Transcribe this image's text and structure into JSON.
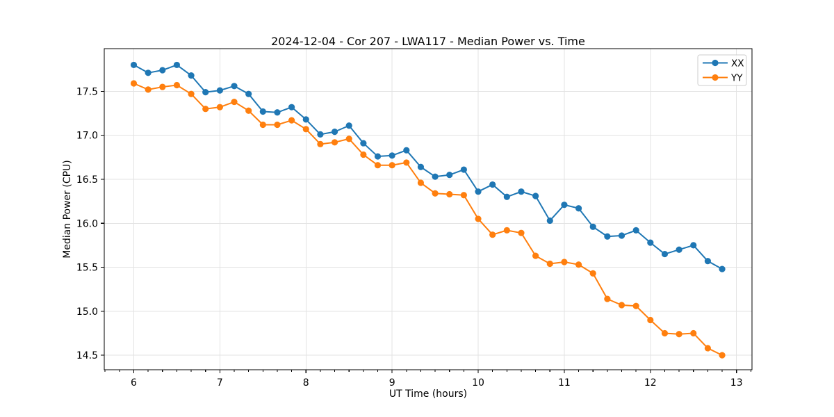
{
  "chart_data": {
    "type": "line",
    "title": "2024-12-04 - Cor 207 - LWA117 - Median Power vs. Time",
    "xlabel": "UT Time (hours)",
    "ylabel": "Median Power (CPU)",
    "xlim": [
      5.657,
      13.18
    ],
    "ylim": [
      14.335,
      17.985
    ],
    "xticks": [
      6,
      7,
      8,
      9,
      10,
      11,
      12,
      13
    ],
    "yticks": [
      14.5,
      15.0,
      15.5,
      16.0,
      16.5,
      17.0,
      17.5
    ],
    "x_minor_tick_step": 0.166667,
    "grid": true,
    "grid_color": "#e3e3e3",
    "legend_position": "upper right",
    "x": [
      6.0,
      6.1667,
      6.3333,
      6.5,
      6.6667,
      6.8333,
      7.0,
      7.1667,
      7.3333,
      7.5,
      7.6667,
      7.8333,
      8.0,
      8.1667,
      8.3333,
      8.5,
      8.6667,
      8.8333,
      9.0,
      9.1667,
      9.3333,
      9.5,
      9.6667,
      9.8333,
      10.0,
      10.1667,
      10.3333,
      10.5,
      10.6667,
      10.8333,
      11.0,
      11.1667,
      11.3333,
      11.5,
      11.6667,
      11.8333,
      12.0,
      12.1667,
      12.3333,
      12.5,
      12.6667,
      12.8333
    ],
    "series": [
      {
        "name": "XX",
        "color": "#1f77b4",
        "values": [
          17.8,
          17.71,
          17.74,
          17.8,
          17.68,
          17.49,
          17.51,
          17.56,
          17.47,
          17.27,
          17.26,
          17.32,
          17.18,
          17.01,
          17.04,
          17.11,
          16.91,
          16.76,
          16.77,
          16.83,
          16.64,
          16.53,
          16.55,
          16.61,
          16.36,
          16.44,
          16.3,
          16.36,
          16.31,
          16.03,
          16.21,
          16.17,
          15.96,
          15.85,
          15.86,
          15.92,
          15.78,
          15.65,
          15.7,
          15.75,
          15.57,
          15.48
        ]
      },
      {
        "name": "YY",
        "color": "#ff7f0e",
        "values": [
          17.59,
          17.52,
          17.55,
          17.57,
          17.47,
          17.3,
          17.32,
          17.38,
          17.28,
          17.12,
          17.12,
          17.17,
          17.07,
          16.9,
          16.92,
          16.96,
          16.78,
          16.66,
          16.66,
          16.69,
          16.46,
          16.34,
          16.33,
          16.32,
          16.05,
          15.87,
          15.92,
          15.89,
          15.63,
          15.54,
          15.56,
          15.53,
          15.43,
          15.14,
          15.07,
          15.06,
          14.9,
          14.75,
          14.74,
          14.75,
          14.58,
          14.5
        ]
      }
    ]
  }
}
